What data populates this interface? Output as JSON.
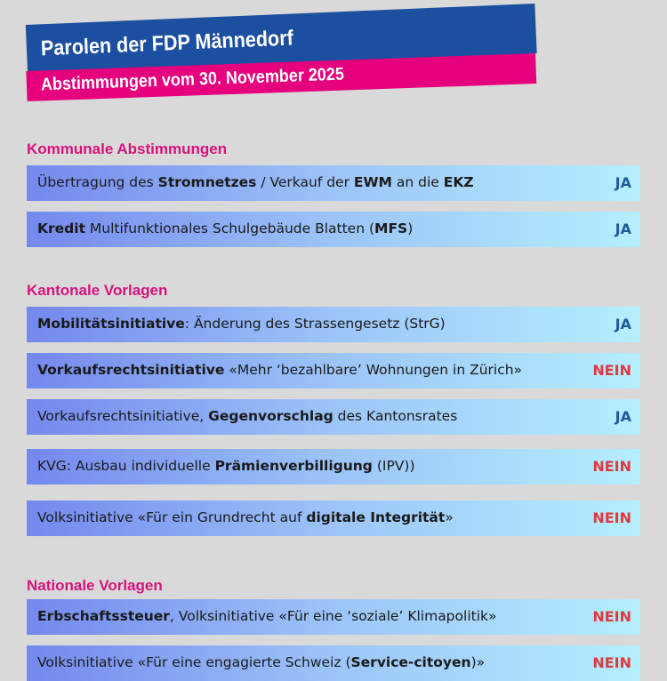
{
  "header": {
    "title": "Parolen der FDP Männedorf",
    "subtitle": "Abstimmungen vom 30. November 2025"
  },
  "sections": [
    {
      "title": "Kommunale Abstimmungen",
      "items": [
        {
          "parts": [
            {
              "text": "Übertragung des "
            },
            {
              "text": "Stromnetzes",
              "bold": true
            },
            {
              "text": " / Verkauf der "
            },
            {
              "text": "EWM",
              "bold": true
            },
            {
              "text": " an die "
            },
            {
              "text": "EKZ",
              "bold": true
            }
          ],
          "vote": "JA",
          "color": "#1f5b9c"
        },
        {
          "parts": [
            {
              "text": "Kredit",
              "bold": true
            },
            {
              "text": " Multifunktionales Schulgebäude Blatten ("
            },
            {
              "text": "MFS",
              "bold": true
            },
            {
              "text": ")"
            }
          ],
          "vote": "JA",
          "color": "#1f5b9c"
        }
      ]
    },
    {
      "title": "Kantonale Vorlagen",
      "items": [
        {
          "parts": [
            {
              "text": "Mobilitätsinitiative",
              "bold": true
            },
            {
              "text": ": Änderung des Strassengesetz (StrG)"
            }
          ],
          "vote": "JA",
          "color": "#1f5b9c"
        },
        {
          "parts": [
            {
              "text": "Vorkaufsrechtsinitiative",
              "bold": true
            },
            {
              "text": " «Mehr ‘bezahlbare’ Wohnungen in Zürich»"
            }
          ],
          "vote": "NEIN",
          "color": "#e0393e"
        },
        {
          "parts": [
            {
              "text": "Vorkaufsrechtsinitiative, "
            },
            {
              "text": "Gegenvorschlag",
              "bold": true
            },
            {
              "text": " des Kantonsrates"
            }
          ],
          "vote": "JA",
          "color": "#1f5b9c"
        },
        {
          "parts": [
            {
              "text": "KVG: Ausbau individuelle "
            },
            {
              "text": "Prämienverbilligung",
              "bold": true
            },
            {
              "text": " (IPV))"
            }
          ],
          "vote": "NEIN",
          "color": "#e0393e"
        },
        {
          "parts": [
            {
              "text": "Volksinitiative «Für ein Grundrecht auf "
            },
            {
              "text": "digitale Integrität",
              "bold": true
            },
            {
              "text": "»"
            }
          ],
          "vote": "NEIN",
          "color": "#e0393e"
        }
      ]
    },
    {
      "title": "Nationale Vorlagen",
      "items": [
        {
          "parts": [
            {
              "text": "Erbschaftssteuer",
              "bold": true
            },
            {
              "text": ", Volksinitiative «Für eine ‘soziale’ Klimapolitik»"
            }
          ],
          "vote": "NEIN",
          "color": "#e0393e"
        },
        {
          "parts": [
            {
              "text": "Volksinitiative «Für eine engagierte Schweiz ("
            },
            {
              "text": "Service-citoyen",
              "bold": true
            },
            {
              "text": ")»"
            }
          ],
          "vote": "NEIN",
          "color": "#e0393e"
        }
      ]
    }
  ]
}
